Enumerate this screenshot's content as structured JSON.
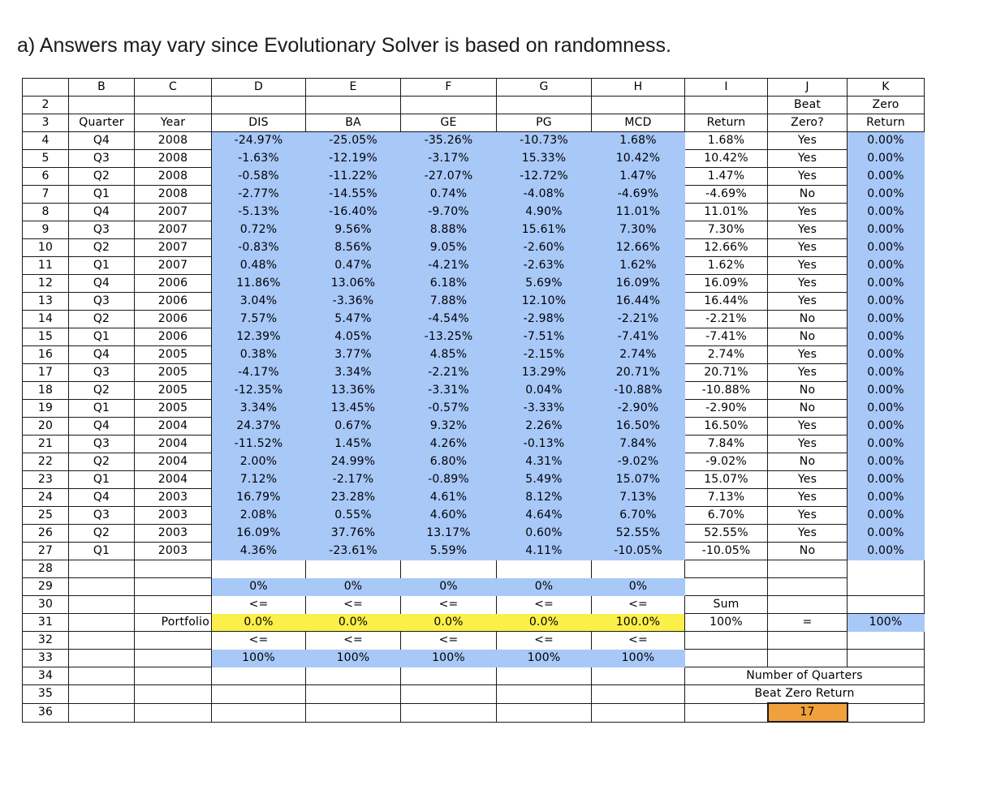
{
  "caption": "a) Answers may vary since Evolutionary Solver is based on randomness.",
  "sheet": {
    "column_letters": [
      "",
      "B",
      "C",
      "D",
      "E",
      "F",
      "G",
      "H",
      "I",
      "J",
      "K"
    ],
    "header_row2": {
      "row": "2",
      "J": "Beat",
      "K": "Zero"
    },
    "header_row3": {
      "row": "3",
      "B": "Quarter",
      "C": "Year",
      "D": "DIS",
      "E": "BA",
      "F": "GE",
      "G": "PG",
      "H": "MCD",
      "I": "Return",
      "J": "Zero?",
      "K": "Return"
    },
    "data_rows": [
      {
        "row": "4",
        "quarter": "Q4",
        "year": "2008",
        "DIS": "-24.97%",
        "BA": "-25.05%",
        "GE": "-35.26%",
        "PG": "-10.73%",
        "MCD": "1.68%",
        "ret": "1.68%",
        "beat": "Yes",
        "zero": "0.00%"
      },
      {
        "row": "5",
        "quarter": "Q3",
        "year": "2008",
        "DIS": "-1.63%",
        "BA": "-12.19%",
        "GE": "-3.17%",
        "PG": "15.33%",
        "MCD": "10.42%",
        "ret": "10.42%",
        "beat": "Yes",
        "zero": "0.00%"
      },
      {
        "row": "6",
        "quarter": "Q2",
        "year": "2008",
        "DIS": "-0.58%",
        "BA": "-11.22%",
        "GE": "-27.07%",
        "PG": "-12.72%",
        "MCD": "1.47%",
        "ret": "1.47%",
        "beat": "Yes",
        "zero": "0.00%"
      },
      {
        "row": "7",
        "quarter": "Q1",
        "year": "2008",
        "DIS": "-2.77%",
        "BA": "-14.55%",
        "GE": "0.74%",
        "PG": "-4.08%",
        "MCD": "-4.69%",
        "ret": "-4.69%",
        "beat": "No",
        "zero": "0.00%"
      },
      {
        "row": "8",
        "quarter": "Q4",
        "year": "2007",
        "DIS": "-5.13%",
        "BA": "-16.40%",
        "GE": "-9.70%",
        "PG": "4.90%",
        "MCD": "11.01%",
        "ret": "11.01%",
        "beat": "Yes",
        "zero": "0.00%"
      },
      {
        "row": "9",
        "quarter": "Q3",
        "year": "2007",
        "DIS": "0.72%",
        "BA": "9.56%",
        "GE": "8.88%",
        "PG": "15.61%",
        "MCD": "7.30%",
        "ret": "7.30%",
        "beat": "Yes",
        "zero": "0.00%"
      },
      {
        "row": "10",
        "quarter": "Q2",
        "year": "2007",
        "DIS": "-0.83%",
        "BA": "8.56%",
        "GE": "9.05%",
        "PG": "-2.60%",
        "MCD": "12.66%",
        "ret": "12.66%",
        "beat": "Yes",
        "zero": "0.00%"
      },
      {
        "row": "11",
        "quarter": "Q1",
        "year": "2007",
        "DIS": "0.48%",
        "BA": "0.47%",
        "GE": "-4.21%",
        "PG": "-2.63%",
        "MCD": "1.62%",
        "ret": "1.62%",
        "beat": "Yes",
        "zero": "0.00%"
      },
      {
        "row": "12",
        "quarter": "Q4",
        "year": "2006",
        "DIS": "11.86%",
        "BA": "13.06%",
        "GE": "6.18%",
        "PG": "5.69%",
        "MCD": "16.09%",
        "ret": "16.09%",
        "beat": "Yes",
        "zero": "0.00%"
      },
      {
        "row": "13",
        "quarter": "Q3",
        "year": "2006",
        "DIS": "3.04%",
        "BA": "-3.36%",
        "GE": "7.88%",
        "PG": "12.10%",
        "MCD": "16.44%",
        "ret": "16.44%",
        "beat": "Yes",
        "zero": "0.00%"
      },
      {
        "row": "14",
        "quarter": "Q2",
        "year": "2006",
        "DIS": "7.57%",
        "BA": "5.47%",
        "GE": "-4.54%",
        "PG": "-2.98%",
        "MCD": "-2.21%",
        "ret": "-2.21%",
        "beat": "No",
        "zero": "0.00%"
      },
      {
        "row": "15",
        "quarter": "Q1",
        "year": "2006",
        "DIS": "12.39%",
        "BA": "4.05%",
        "GE": "-13.25%",
        "PG": "-7.51%",
        "MCD": "-7.41%",
        "ret": "-7.41%",
        "beat": "No",
        "zero": "0.00%"
      },
      {
        "row": "16",
        "quarter": "Q4",
        "year": "2005",
        "DIS": "0.38%",
        "BA": "3.77%",
        "GE": "4.85%",
        "PG": "-2.15%",
        "MCD": "2.74%",
        "ret": "2.74%",
        "beat": "Yes",
        "zero": "0.00%"
      },
      {
        "row": "17",
        "quarter": "Q3",
        "year": "2005",
        "DIS": "-4.17%",
        "BA": "3.34%",
        "GE": "-2.21%",
        "PG": "13.29%",
        "MCD": "20.71%",
        "ret": "20.71%",
        "beat": "Yes",
        "zero": "0.00%"
      },
      {
        "row": "18",
        "quarter": "Q2",
        "year": "2005",
        "DIS": "-12.35%",
        "BA": "13.36%",
        "GE": "-3.31%",
        "PG": "0.04%",
        "MCD": "-10.88%",
        "ret": "-10.88%",
        "beat": "No",
        "zero": "0.00%"
      },
      {
        "row": "19",
        "quarter": "Q1",
        "year": "2005",
        "DIS": "3.34%",
        "BA": "13.45%",
        "GE": "-0.57%",
        "PG": "-3.33%",
        "MCD": "-2.90%",
        "ret": "-2.90%",
        "beat": "No",
        "zero": "0.00%"
      },
      {
        "row": "20",
        "quarter": "Q4",
        "year": "2004",
        "DIS": "24.37%",
        "BA": "0.67%",
        "GE": "9.32%",
        "PG": "2.26%",
        "MCD": "16.50%",
        "ret": "16.50%",
        "beat": "Yes",
        "zero": "0.00%"
      },
      {
        "row": "21",
        "quarter": "Q3",
        "year": "2004",
        "DIS": "-11.52%",
        "BA": "1.45%",
        "GE": "4.26%",
        "PG": "-0.13%",
        "MCD": "7.84%",
        "ret": "7.84%",
        "beat": "Yes",
        "zero": "0.00%"
      },
      {
        "row": "22",
        "quarter": "Q2",
        "year": "2004",
        "DIS": "2.00%",
        "BA": "24.99%",
        "GE": "6.80%",
        "PG": "4.31%",
        "MCD": "-9.02%",
        "ret": "-9.02%",
        "beat": "No",
        "zero": "0.00%"
      },
      {
        "row": "23",
        "quarter": "Q1",
        "year": "2004",
        "DIS": "7.12%",
        "BA": "-2.17%",
        "GE": "-0.89%",
        "PG": "5.49%",
        "MCD": "15.07%",
        "ret": "15.07%",
        "beat": "Yes",
        "zero": "0.00%"
      },
      {
        "row": "24",
        "quarter": "Q4",
        "year": "2003",
        "DIS": "16.79%",
        "BA": "23.28%",
        "GE": "4.61%",
        "PG": "8.12%",
        "MCD": "7.13%",
        "ret": "7.13%",
        "beat": "Yes",
        "zero": "0.00%"
      },
      {
        "row": "25",
        "quarter": "Q3",
        "year": "2003",
        "DIS": "2.08%",
        "BA": "0.55%",
        "GE": "4.60%",
        "PG": "4.64%",
        "MCD": "6.70%",
        "ret": "6.70%",
        "beat": "Yes",
        "zero": "0.00%"
      },
      {
        "row": "26",
        "quarter": "Q2",
        "year": "2003",
        "DIS": "16.09%",
        "BA": "37.76%",
        "GE": "13.17%",
        "PG": "0.60%",
        "MCD": "52.55%",
        "ret": "52.55%",
        "beat": "Yes",
        "zero": "0.00%"
      },
      {
        "row": "27",
        "quarter": "Q1",
        "year": "2003",
        "DIS": "4.36%",
        "BA": "-23.61%",
        "GE": "5.59%",
        "PG": "4.11%",
        "MCD": "-10.05%",
        "ret": "-10.05%",
        "beat": "No",
        "zero": "0.00%"
      }
    ],
    "row28": {
      "row": "28"
    },
    "row29": {
      "row": "29",
      "lower_bounds": [
        "0%",
        "0%",
        "0%",
        "0%",
        "0%"
      ]
    },
    "row30": {
      "row": "30",
      "ops": [
        "<=",
        "<=",
        "<=",
        "<=",
        "<="
      ],
      "sum_label": "Sum"
    },
    "row31": {
      "row": "31",
      "label": "Portfolio",
      "weights": [
        "0.0%",
        "0.0%",
        "0.0%",
        "0.0%",
        "100.0%"
      ],
      "sum_value": "100%",
      "equals": "=",
      "target": "100%"
    },
    "row32": {
      "row": "32",
      "ops": [
        "<=",
        "<=",
        "<=",
        "<=",
        "<="
      ]
    },
    "row33": {
      "row": "33",
      "upper_bounds": [
        "100%",
        "100%",
        "100%",
        "100%",
        "100%"
      ]
    },
    "row34": {
      "row": "34",
      "label": "Number of Quarters"
    },
    "row35": {
      "row": "35",
      "label": "Beat Zero Return"
    },
    "row36": {
      "row": "36",
      "count": "17"
    }
  },
  "colors": {
    "input_blue": "#a8c8f8",
    "decision_yellow": "#fbef4a",
    "objective_orange": "#f0a03c"
  }
}
